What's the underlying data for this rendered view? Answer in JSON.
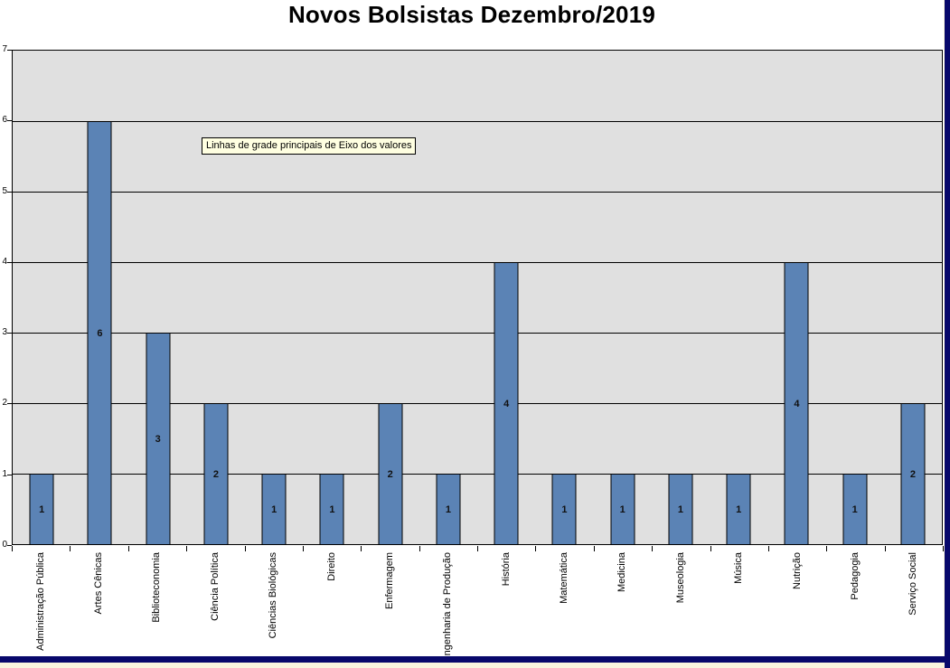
{
  "window": {
    "frame_color": "#08086b",
    "sheet_background": "#f9f5de",
    "chart_background": "#ffffff"
  },
  "chart": {
    "title": "Novos Bolsistas Dezembro/2019",
    "tooltip": "Linhas de grade principais de Eixo dos valores",
    "colors": {
      "bar_fill": "#5b83b5",
      "bar_border": "#000000",
      "plot_background": "#e0e0e0",
      "gridline": "#000000",
      "tooltip_background": "#ffffe1",
      "text": "#000000"
    }
  },
  "chart_data": {
    "type": "bar",
    "title": "Novos Bolsistas Dezembro/2019",
    "categories": [
      "Administração Pública",
      "Artes Cênicas",
      "Biblioteconomia",
      "Ciência Política",
      "Ciências Biológicas",
      "Direito",
      "Enfermagem",
      "Engenharia de Produção",
      "História",
      "Matemática",
      "Medicina",
      "Museologia",
      "Música",
      "Nutrição",
      "Pedagogia",
      "Serviço Social"
    ],
    "values": [
      1,
      6,
      3,
      2,
      1,
      1,
      2,
      1,
      4,
      1,
      1,
      1,
      1,
      4,
      1,
      2
    ],
    "xlabel": "",
    "ylabel": "",
    "ylim": [
      0,
      7
    ],
    "yticks": [
      0,
      1,
      2,
      3,
      4,
      5,
      6,
      7
    ],
    "grid": true,
    "legend": false,
    "data_labels": "inside-center",
    "annotations": [
      "Linhas de grade principais de Eixo dos valores"
    ]
  }
}
